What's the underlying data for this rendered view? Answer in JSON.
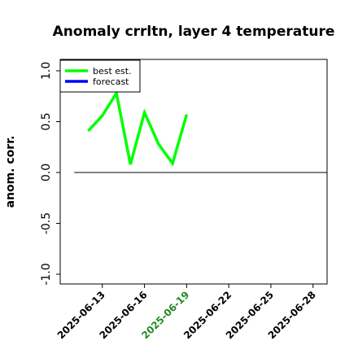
{
  "chart_data": {
    "type": "line",
    "title": "Anomaly crrltn, layer 4 temperature",
    "ylabel": "anom. corr.",
    "xlabel": "",
    "ylim": [
      -1.0,
      1.0
    ],
    "xlim": [
      "2025-06-10",
      "2025-06-29"
    ],
    "y_ticks": [
      "-1.0",
      "-0.5",
      "0.0",
      "0.5",
      "1.0"
    ],
    "x_ticks": [
      "2025-06-13",
      "2025-06-16",
      "2025-06-19",
      "2025-06-22",
      "2025-06-25",
      "2025-06-28"
    ],
    "highlight_tick": "2025-06-19",
    "highlight_color": "#228b22",
    "legend": {
      "placement": "top-left",
      "entries": [
        "best est.",
        "forecast"
      ]
    },
    "series": [
      {
        "name": "best est.",
        "color": "#00ff00",
        "x": [
          "2025-06-12",
          "2025-06-13",
          "2025-06-14",
          "2025-06-15",
          "2025-06-16",
          "2025-06-17",
          "2025-06-18",
          "2025-06-19"
        ],
        "values": [
          0.41,
          0.56,
          0.78,
          0.08,
          0.59,
          0.28,
          0.09,
          0.57
        ]
      },
      {
        "name": "forecast",
        "color": "#0000ff",
        "x": [],
        "values": []
      }
    ],
    "reference_line": {
      "y": 0.0,
      "x": [
        "2025-06-11",
        "2025-06-29"
      ],
      "color": "#000000"
    }
  }
}
